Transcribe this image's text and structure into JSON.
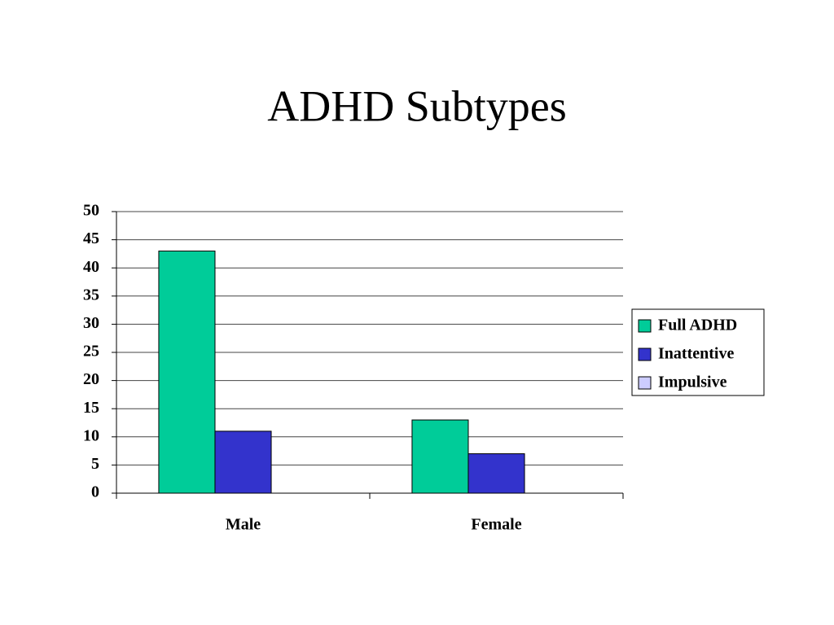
{
  "chart_data": {
    "type": "bar",
    "title": "ADHD Subtypes",
    "categories": [
      "Male",
      "Female"
    ],
    "series": [
      {
        "name": "Full ADHD",
        "color": "#00cc99",
        "values": [
          43,
          13
        ]
      },
      {
        "name": "Inattentive",
        "color": "#3333cc",
        "values": [
          11,
          7
        ]
      },
      {
        "name": "Impulsive",
        "color": "#ccccff",
        "values": [
          0,
          0
        ]
      }
    ],
    "ylim": [
      0,
      50
    ],
    "yticks": [
      0,
      5,
      10,
      15,
      20,
      25,
      30,
      35,
      40,
      45,
      50
    ],
    "grid": true,
    "legend": "right"
  }
}
